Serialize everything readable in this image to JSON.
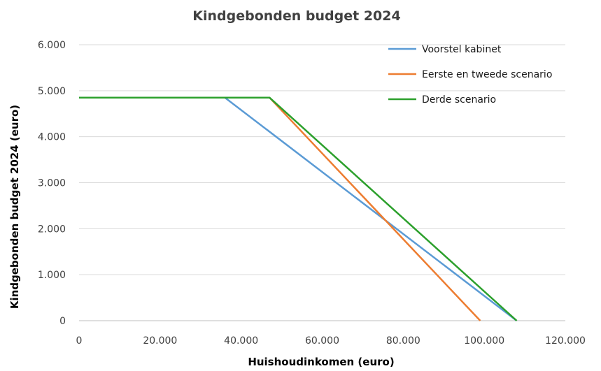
{
  "chart_data": {
    "type": "line",
    "title": "Kindgebonden budget 2024",
    "xlabel": "Huishoudinkomen (euro)",
    "ylabel": "Kindgebonden budget 2024 (euro)",
    "xlim": [
      0,
      120000
    ],
    "ylim": [
      0,
      6000
    ],
    "x_ticks": [
      0,
      20000,
      40000,
      60000,
      80000,
      100000,
      120000
    ],
    "x_tick_labels": [
      "0",
      "20.000",
      "40.000",
      "60.000",
      "80.000",
      "100.000",
      "120.000"
    ],
    "y_ticks": [
      0,
      1000,
      2000,
      3000,
      4000,
      5000,
      6000
    ],
    "y_tick_labels": [
      "0",
      "1.000",
      "2.000",
      "3.000",
      "4.000",
      "5.000",
      "6.000"
    ],
    "grid": "horizontal",
    "legend_position": "top-right",
    "series": [
      {
        "name": "Voorstel kabinet",
        "color": "#5b9bd5",
        "points": [
          [
            0,
            4850
          ],
          [
            36000,
            4850
          ],
          [
            108000,
            0
          ]
        ]
      },
      {
        "name": "Eerste en tweede scenario",
        "color": "#ed7d31",
        "points": [
          [
            0,
            4850
          ],
          [
            47000,
            4850
          ],
          [
            99000,
            0
          ]
        ]
      },
      {
        "name": "Derde scenario",
        "color": "#2ca02c",
        "points": [
          [
            0,
            4850
          ],
          [
            47000,
            4850
          ],
          [
            108000,
            0
          ]
        ]
      }
    ]
  }
}
